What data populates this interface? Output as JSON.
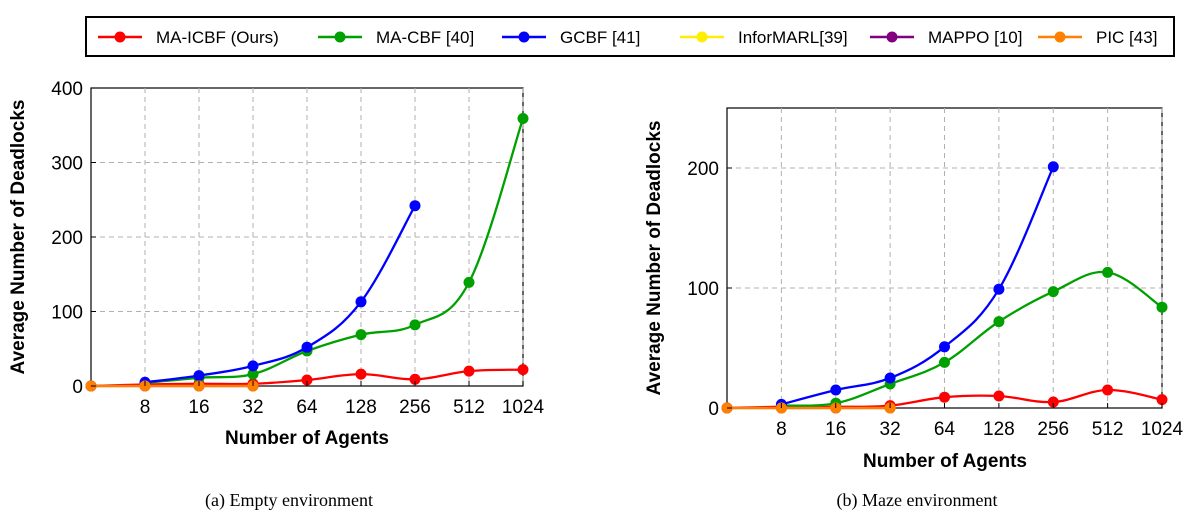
{
  "legend": [
    {
      "label": "MA-ICBF (Ours)",
      "color": "#ff0000"
    },
    {
      "label": "MA-CBF [40]",
      "color": "#00a000"
    },
    {
      "label": "GCBF [41]",
      "color": "#0000ff"
    },
    {
      "label": "InforMARL[39]",
      "color": "#ffee00"
    },
    {
      "label": "MAPPO [10]",
      "color": "#800080"
    },
    {
      "label": "PIC [43]",
      "color": "#ff8000"
    }
  ],
  "chart_data": [
    {
      "type": "line",
      "caption": "(a) Empty environment",
      "xlabel": "Number of Agents",
      "ylabel": "Average Number of Deadlocks",
      "x_categories": [
        "8",
        "16",
        "32",
        "64",
        "128",
        "256",
        "512",
        "1024"
      ],
      "ylim": [
        0,
        400
      ],
      "yticks": [
        "0",
        "100",
        "200",
        "300",
        "400"
      ],
      "grid": true,
      "series": [
        {
          "name": "MA-ICBF (Ours)",
          "color": "#ff0000",
          "points": [
            [
              4,
              0
            ],
            [
              8,
              2
            ],
            [
              16,
              3
            ],
            [
              32,
              3
            ],
            [
              64,
              8
            ],
            [
              128,
              16
            ],
            [
              256,
              9
            ],
            [
              512,
              20
            ],
            [
              1024,
              22
            ]
          ]
        },
        {
          "name": "MA-CBF [40]",
          "color": "#00a000",
          "points": [
            [
              8,
              4
            ],
            [
              16,
              11
            ],
            [
              32,
              16
            ],
            [
              64,
              47
            ],
            [
              128,
              69
            ],
            [
              256,
              82
            ],
            [
              512,
              139
            ],
            [
              1024,
              359
            ]
          ]
        },
        {
          "name": "GCBF [41]",
          "color": "#0000ff",
          "points": [
            [
              8,
              5
            ],
            [
              16,
              14
            ],
            [
              32,
              27
            ],
            [
              64,
              52
            ],
            [
              128,
              113
            ],
            [
              256,
              242
            ]
          ]
        },
        {
          "name": "InforMARL[39]",
          "color": "#ffee00",
          "points": [
            [
              4,
              0
            ],
            [
              8,
              0
            ],
            [
              16,
              0
            ],
            [
              32,
              0
            ]
          ]
        },
        {
          "name": "MAPPO [10]",
          "color": "#800080",
          "points": [
            [
              4,
              0
            ],
            [
              8,
              0
            ],
            [
              16,
              0
            ],
            [
              32,
              0
            ]
          ]
        },
        {
          "name": "PIC [43]",
          "color": "#ff8000",
          "points": [
            [
              4,
              0
            ],
            [
              8,
              0
            ],
            [
              16,
              0
            ],
            [
              32,
              0
            ]
          ]
        }
      ]
    },
    {
      "type": "line",
      "caption": "(b) Maze environment",
      "xlabel": "Number of Agents",
      "ylabel": "Average Number of Deadlocks",
      "x_categories": [
        "8",
        "16",
        "32",
        "64",
        "128",
        "256",
        "512",
        "1024"
      ],
      "ylim": [
        0,
        250
      ],
      "yticks": [
        "0",
        "100",
        "200"
      ],
      "grid": true,
      "series": [
        {
          "name": "MA-ICBF (Ours)",
          "color": "#ff0000",
          "points": [
            [
              4,
              0
            ],
            [
              8,
              1
            ],
            [
              16,
              1
            ],
            [
              32,
              2
            ],
            [
              64,
              9
            ],
            [
              128,
              10
            ],
            [
              256,
              5
            ],
            [
              512,
              15
            ],
            [
              1024,
              7
            ]
          ]
        },
        {
          "name": "MA-CBF [40]",
          "color": "#00a000",
          "points": [
            [
              8,
              2
            ],
            [
              16,
              4
            ],
            [
              32,
              20
            ],
            [
              64,
              38
            ],
            [
              128,
              72
            ],
            [
              256,
              97
            ],
            [
              512,
              113
            ],
            [
              1024,
              84
            ]
          ]
        },
        {
          "name": "GCBF [41]",
          "color": "#0000ff",
          "points": [
            [
              8,
              3
            ],
            [
              16,
              15
            ],
            [
              32,
              25
            ],
            [
              64,
              51
            ],
            [
              128,
              99
            ],
            [
              256,
              201
            ]
          ]
        },
        {
          "name": "InforMARL[39]",
          "color": "#ffee00",
          "points": [
            [
              4,
              0
            ],
            [
              8,
              0
            ],
            [
              16,
              0
            ],
            [
              32,
              0
            ]
          ]
        },
        {
          "name": "MAPPO [10]",
          "color": "#800080",
          "points": [
            [
              4,
              0
            ],
            [
              8,
              0
            ],
            [
              16,
              0
            ],
            [
              32,
              0
            ]
          ]
        },
        {
          "name": "PIC [43]",
          "color": "#ff8000",
          "points": [
            [
              4,
              0
            ],
            [
              8,
              0
            ],
            [
              16,
              0
            ],
            [
              32,
              0
            ]
          ]
        }
      ]
    }
  ]
}
